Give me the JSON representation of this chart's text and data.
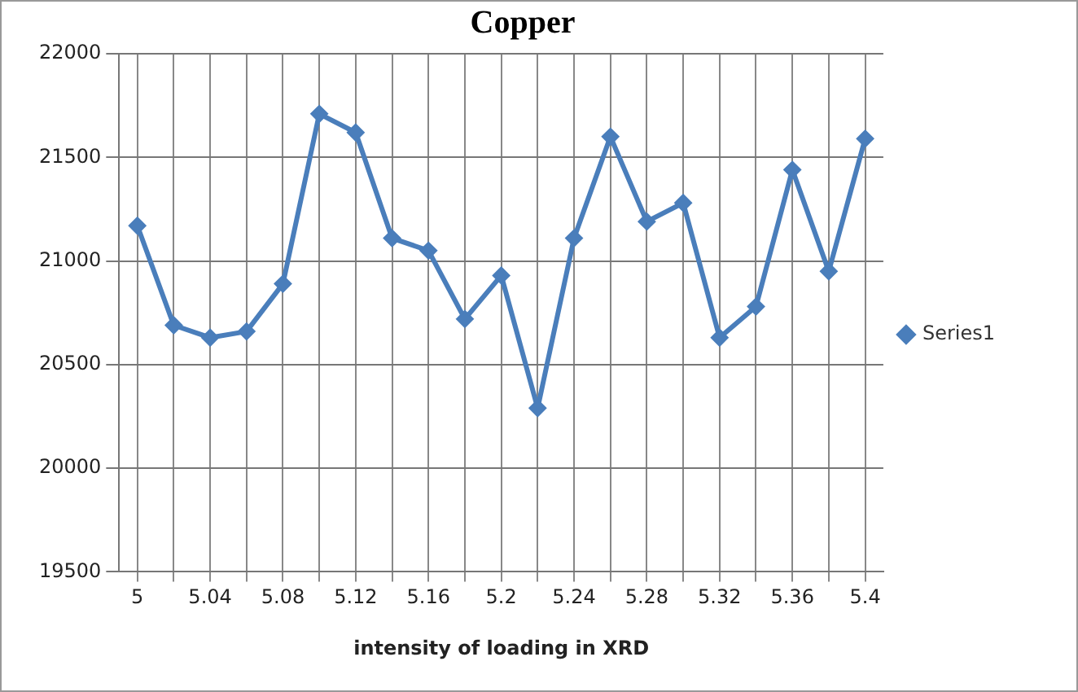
{
  "chart_data": {
    "type": "line",
    "title": "Copper",
    "xlabel": "intensity of loading in XRD",
    "categories": [
      "5",
      null,
      "5.04",
      null,
      "5.08",
      null,
      "5.12",
      null,
      "5.16",
      null,
      "5.2",
      null,
      "5.24",
      null,
      "5.28",
      null,
      "5.32",
      null,
      "5.36",
      null,
      "5.4"
    ],
    "series": [
      {
        "name": "Series1",
        "color": "#4a7ebb",
        "values": [
          21170,
          20690,
          20630,
          20660,
          20890,
          21710,
          21620,
          21110,
          21050,
          20720,
          20930,
          20290,
          21110,
          21600,
          21190,
          21280,
          20630,
          20780,
          21440,
          20950,
          21590
        ]
      }
    ],
    "ylim": [
      19500,
      22000
    ],
    "yticks": [
      19500,
      20000,
      20500,
      21000,
      21500,
      22000
    ],
    "grid": true,
    "legend": "right",
    "marker": "diamond",
    "line_style": "solid"
  }
}
